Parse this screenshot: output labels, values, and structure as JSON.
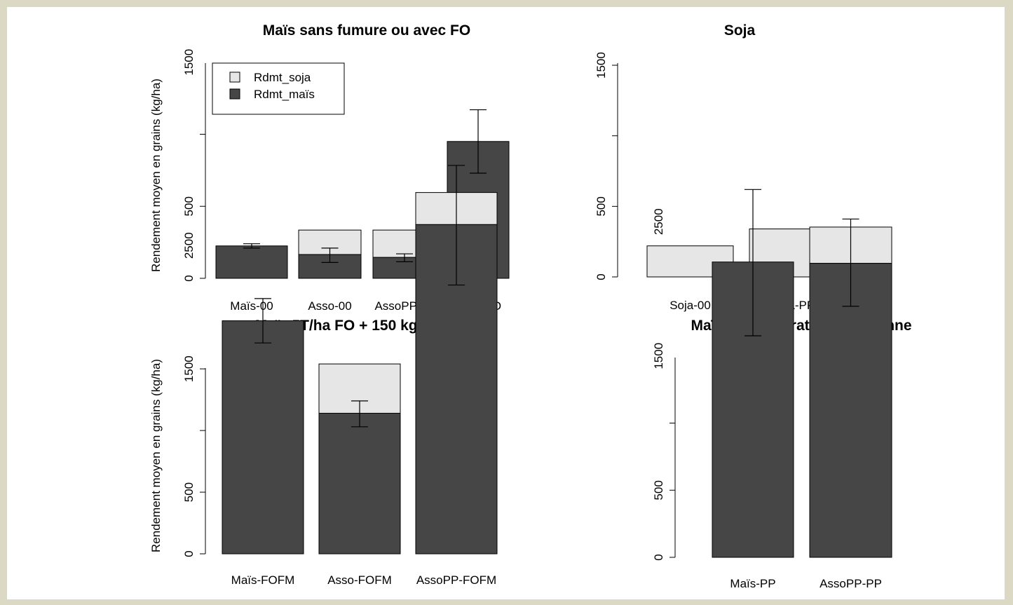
{
  "colors": {
    "Rdmt_soja": "#e6e6e6",
    "Rdmt_maïs": "#464646",
    "page_border": "#dbd8c3"
  },
  "chart_data": [
    {
      "type": "bar",
      "stacked": true,
      "title": "Maïs sans fumure ou avec FO",
      "ylabel": "Rendement moyen en grains (kg/ha)",
      "ylim": [
        0,
        3000
      ],
      "yticks": [
        0,
        500,
        1500,
        2500
      ],
      "categories": [
        "Maïs-00",
        "Asso-00",
        "AssoPP-00",
        "Maïs-FO"
      ],
      "series": [
        {
          "name": "Rdmt_maïs",
          "values": [
            225,
            165,
            145,
            950
          ]
        },
        {
          "name": "Rdmt_soja",
          "values": [
            0,
            170,
            190,
            0
          ]
        }
      ],
      "error_bars": [
        {
          "center": 225,
          "low": 210,
          "high": 240
        },
        {
          "center": 165,
          "low": 110,
          "high": 210
        },
        {
          "center": 145,
          "low": 115,
          "high": 170
        },
        {
          "center": 950,
          "low": 730,
          "high": 1170
        }
      ],
      "legend": {
        "position": "top-left",
        "entries": [
          "Rdmt_soja",
          "Rdmt_maïs"
        ]
      }
    },
    {
      "type": "bar",
      "stacked": true,
      "title": "Soja",
      "ylabel": "",
      "ylim": [
        0,
        3000
      ],
      "yticks": [
        0,
        500,
        1500,
        2500
      ],
      "categories": [
        "Soja-00",
        "Soja-PP"
      ],
      "series": [
        {
          "name": "Rdmt_maïs",
          "values": [
            0,
            0
          ]
        },
        {
          "name": "Rdmt_soja",
          "values": [
            220,
            340
          ]
        }
      ],
      "error_bars": []
    },
    {
      "type": "bar",
      "stacked": true,
      "title": "Maïs 5T/ha FO + 150 kg/ha FM",
      "ylabel": "Rendement moyen en grains (kg/ha)",
      "ylim": [
        0,
        3000
      ],
      "yticks": [
        0,
        500,
        1500,
        2500
      ],
      "categories": [
        "Maïs-FOFM",
        "Asso-FOFM",
        "AssoPP-FOFM"
      ],
      "series": [
        {
          "name": "Rdmt_maïs",
          "values": [
            1890,
            1140,
            2670
          ]
        },
        {
          "name": "Rdmt_soja",
          "values": [
            0,
            400,
            260
          ]
        }
      ],
      "error_bars": [
        {
          "center": 1890,
          "low": 1710,
          "high": 2070
        },
        {
          "center": 1140,
          "low": 1030,
          "high": 1240
        },
        {
          "center": 2670,
          "low": 2180,
          "high": 3150
        }
      ]
    },
    {
      "type": "bar",
      "stacked": true,
      "title": "Maïs fumure pratique paysanne",
      "ylabel": "",
      "ylim": [
        0,
        3000
      ],
      "yticks": [
        0,
        500,
        1500,
        2500
      ],
      "categories": [
        "Maïs-PP",
        "AssoPP-PP"
      ],
      "series": [
        {
          "name": "Rdmt_maïs",
          "values": [
            2200,
            2190
          ]
        },
        {
          "name": "Rdmt_soja",
          "values": [
            0,
            270
          ]
        }
      ],
      "error_bars": [
        {
          "center": 2200,
          "low": 1650,
          "high": 2740
        },
        {
          "center": 2190,
          "low": 1870,
          "high": 2520
        }
      ]
    }
  ]
}
